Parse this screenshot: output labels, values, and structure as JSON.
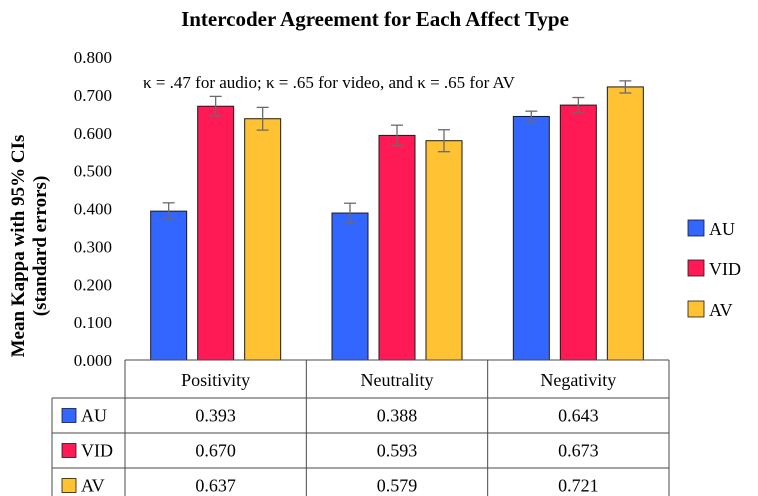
{
  "chart_data": {
    "type": "bar",
    "title": "Intercoder Agreement for Each Affect Type",
    "ylabel_line1": "Mean Kappa with 95% CIs",
    "ylabel_line2": "(standard errors)",
    "annotation": "κ = .47 for audio; κ = .65 for video, and κ = .65 for AV",
    "ylim": [
      0,
      0.8
    ],
    "yticks": [
      "0.000",
      "0.100",
      "0.200",
      "0.300",
      "0.400",
      "0.500",
      "0.600",
      "0.700",
      "0.800"
    ],
    "categories": [
      "Positivity",
      "Neutrality",
      "Negativity"
    ],
    "series": [
      {
        "name": "AU",
        "color": "#3366ff",
        "values": [
          0.393,
          0.388,
          0.643
        ],
        "labels": [
          "0.393",
          "0.388",
          "0.643"
        ],
        "errors": [
          0.022,
          0.026,
          0.014
        ]
      },
      {
        "name": "VID",
        "color": "#ff1a55",
        "values": [
          0.67,
          0.593,
          0.673
        ],
        "labels": [
          "0.670",
          "0.593",
          "0.673"
        ],
        "errors": [
          0.026,
          0.027,
          0.02
        ]
      },
      {
        "name": "AV",
        "color": "#ffc233",
        "values": [
          0.637,
          0.579,
          0.721
        ],
        "labels": [
          "0.637",
          "0.579",
          "0.721"
        ],
        "errors": [
          0.03,
          0.029,
          0.016
        ]
      }
    ],
    "grid": false,
    "legend": "right"
  }
}
